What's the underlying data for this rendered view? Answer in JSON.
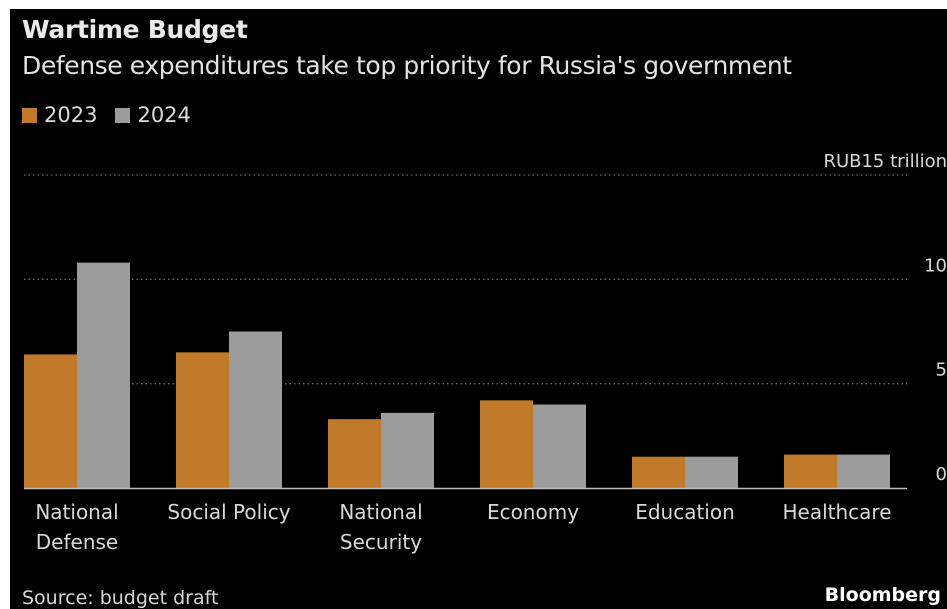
{
  "header": {
    "title": "Wartime Budget",
    "subtitle": "Defense expenditures take top priority for Russia's government"
  },
  "legend": [
    {
      "label": "2023",
      "color": "#c07a2a"
    },
    {
      "label": "2024",
      "color": "#9c9c9c"
    }
  ],
  "footer": {
    "source": "Source: budget draft",
    "brand": "Bloomberg"
  },
  "chart_data": {
    "type": "bar",
    "title": "Wartime Budget",
    "subtitle": "Defense expenditures take top priority for Russia's government",
    "unit_label": "RUB15 trillion",
    "categories": [
      [
        "National",
        "Defense"
      ],
      [
        "Social Policy"
      ],
      [
        "National",
        "Security"
      ],
      [
        "Economy"
      ],
      [
        "Education"
      ],
      [
        "Healthcare"
      ]
    ],
    "series": [
      {
        "name": "2023",
        "color": "#c07a2a",
        "values": [
          6.4,
          6.5,
          3.3,
          4.2,
          1.5,
          1.6
        ]
      },
      {
        "name": "2024",
        "color": "#9c9c9c",
        "values": [
          10.8,
          7.5,
          3.6,
          4.0,
          1.5,
          1.6
        ]
      }
    ],
    "ylim": [
      0,
      15
    ],
    "yticks": [
      {
        "value": 0,
        "label": "0"
      },
      {
        "value": 5,
        "label": "5"
      },
      {
        "value": 10,
        "label": "10"
      },
      {
        "value": 15,
        "label": "RUB15 trillion"
      }
    ],
    "grid": true,
    "legend_position": "top-left"
  }
}
